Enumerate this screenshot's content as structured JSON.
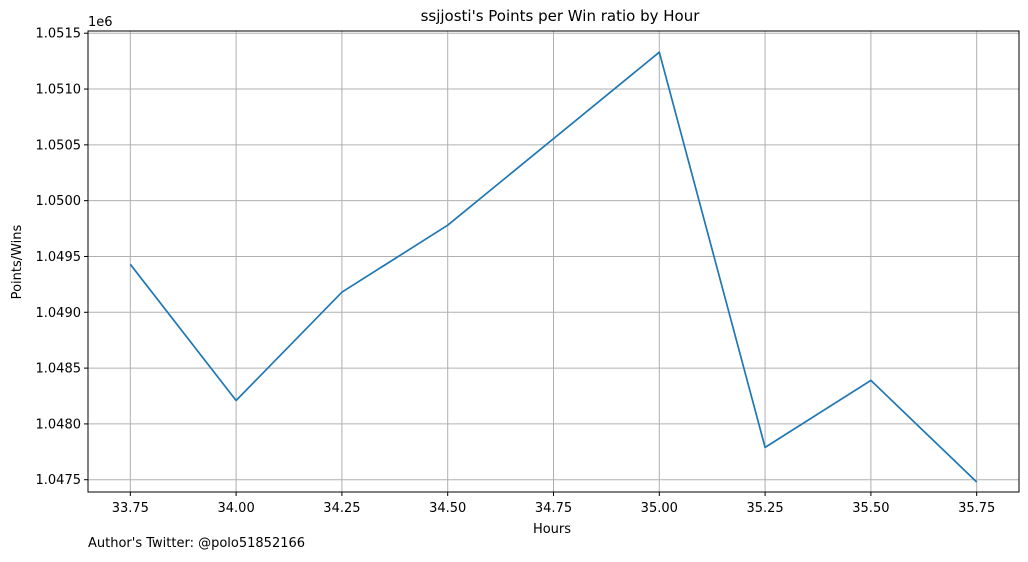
{
  "chart_data": {
    "type": "line",
    "title": "ssjjosti's Points per Win ratio by Hour",
    "xlabel": "Hours",
    "ylabel": "Points/Wins",
    "y_offset_text": "1e6",
    "grid": true,
    "xlim": [
      33.65,
      35.85
    ],
    "ylim": [
      1.04739,
      1.05152
    ],
    "x_ticks": [
      "33.75",
      "34.00",
      "34.25",
      "34.50",
      "34.75",
      "35.00",
      "35.25",
      "35.50",
      "35.75"
    ],
    "y_ticks": [
      "1.0475",
      "1.0480",
      "1.0485",
      "1.0490",
      "1.0495",
      "1.0500",
      "1.0505",
      "1.0510",
      "1.0515"
    ],
    "series": [
      {
        "color": "#1f77b4",
        "x": [
          33.75,
          34.0,
          34.25,
          34.5,
          35.0,
          35.25,
          35.5,
          35.75
        ],
        "y": [
          1.04943,
          1.04821,
          1.04918,
          1.04978,
          1.05133,
          1.04779,
          1.04839,
          1.04748
        ]
      }
    ]
  },
  "footer": {
    "author_text": "Author's Twitter: @polo51852166"
  },
  "colors": {
    "grid": "#b0b0b0",
    "axes": "#000000"
  }
}
